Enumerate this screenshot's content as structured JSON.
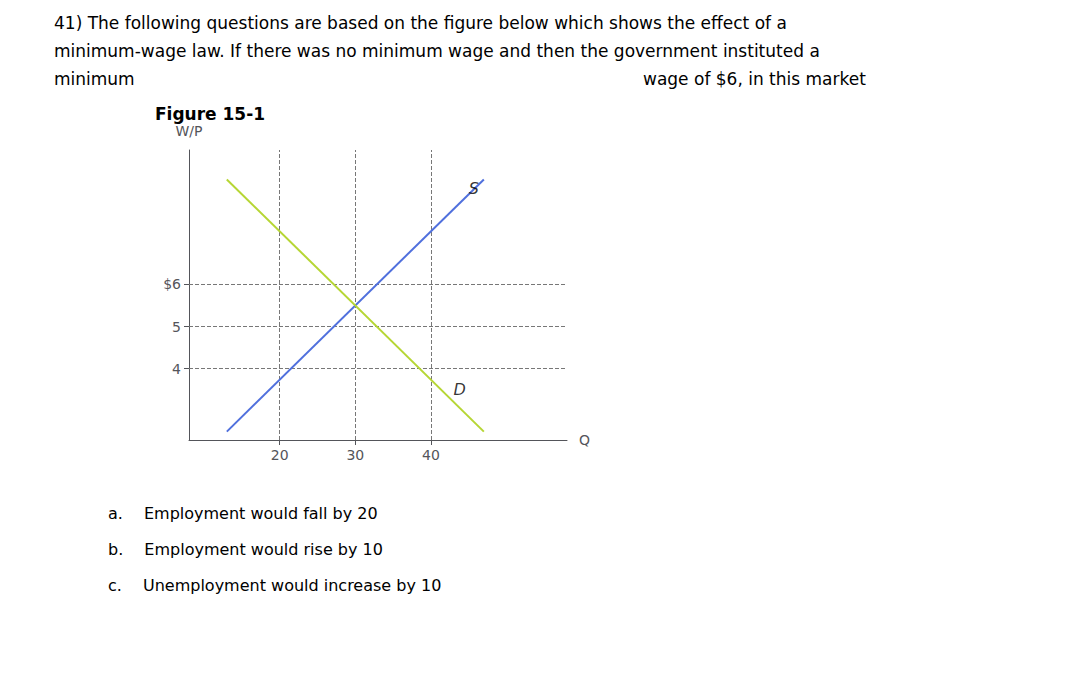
{
  "chart_data": {
    "type": "line",
    "title": "Figure 15-1",
    "xlabel": "Q",
    "ylabel": "W/P",
    "header": [
      [
        "41) The following questions are based on the figure below which shows the effect of a"
      ],
      [
        "minimum-wage law. If there was no minimum wage and then the government instituted a"
      ],
      [
        "minimum",
        "wage of $6, in this market"
      ]
    ],
    "footer": [
      "a.  Employment would fall by 20",
      "b.  Employment would rise by 10",
      "c.  Unemployment would increase by 10"
    ],
    "series": [
      {
        "x": [
          13,
          47
        ],
        "values": [
          2.5,
          8.5
        ]
      },
      {
        "x": [
          13,
          47
        ],
        "values": [
          8.5,
          2.5
        ]
      }
    ],
    "annotations": [
      {
        "text": "S",
        "x": 45,
        "y": 8.1
      },
      {
        "text": "D",
        "x": 43,
        "y": 3.7
      }
    ],
    "hlines": [
      4,
      5,
      6
    ],
    "vlines": [
      20,
      30,
      40
    ],
    "xlim": [
      8,
      58
    ],
    "ylim": [
      2.3,
      9.2
    ],
    "xticks": [
      20,
      30,
      40
    ],
    "yticks": [
      4,
      5,
      {
        "value": 6,
        "label": "$6"
      }
    ],
    "grid": false
  }
}
